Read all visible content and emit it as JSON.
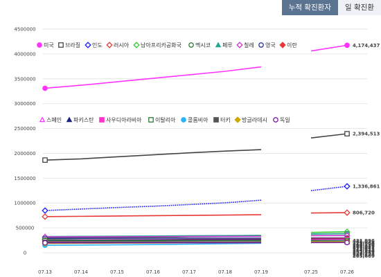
{
  "tabs": [
    {
      "label": "누적 확진환자",
      "active": true
    },
    {
      "label": "일 확진환",
      "active": false
    }
  ],
  "chart_data": {
    "type": "line",
    "categories": [
      "07.13",
      "07.14",
      "07.15",
      "07.16",
      "07.17",
      "07.18",
      "07.19",
      "07.25",
      "07.26"
    ],
    "ylim": [
      0,
      4500000
    ],
    "yticks": [
      0,
      500000,
      1000000,
      1500000,
      2000000,
      2500000,
      3000000,
      3500000,
      4000000,
      4500000
    ],
    "ytick_labels": [
      "0",
      "500000",
      "1000000",
      "1500000",
      "2000000",
      "2500000",
      "3000000",
      "3500000",
      "4000000",
      "4500000"
    ],
    "grid": true,
    "legend_groups": [
      [
        "미국",
        "브라질",
        "인도",
        "러시아",
        "남아프리카공화국",
        "멕시코",
        "페루",
        "칠레",
        "영국",
        "이란"
      ],
      [
        "스페인",
        "파키스탄",
        "사우디아라비아",
        "이탈리아",
        "콜롬비아",
        "터키",
        "방글라데시",
        "독일"
      ]
    ],
    "series": [
      {
        "name": "미국",
        "color": "#ff33ff",
        "marker": "circle-filled",
        "values": [
          3310000,
          3370000,
          3440000,
          3510000,
          3580000,
          3650000,
          3740000,
          4060000,
          4174437
        ],
        "end_label": "4,174,437"
      },
      {
        "name": "브라질",
        "color": "#444444",
        "marker": "square-open",
        "values": [
          1864681,
          1889000,
          1930000,
          1970000,
          2010000,
          2045000,
          2075000,
          2310000,
          2394513
        ],
        "end_label": "2,394,513"
      },
      {
        "name": "인도",
        "color": "#1a1aff",
        "marker": "diamond-open",
        "dotted": true,
        "values": [
          849000,
          880000,
          910000,
          936000,
          970000,
          1005000,
          1058000,
          1250000,
          1336861
        ],
        "end_label": "1,336,861"
      },
      {
        "name": "러시아",
        "color": "#e53935",
        "marker": "diamond-open",
        "values": [
          727000,
          733000,
          739000,
          746000,
          752000,
          759000,
          765000,
          800000,
          806720
        ],
        "end_label": "806,720"
      },
      {
        "name": "남아프리카공화국",
        "color": "#33cc33",
        "marker": "diamond-open",
        "values": [
          276242,
          287796,
          298292,
          311049,
          324221,
          337594,
          350879,
          408052,
          421996
        ],
        "end_label": "421,996"
      },
      {
        "name": "멕시코",
        "color": "#2e7d32",
        "marker": "circle-open",
        "values": [
          299750,
          304435,
          311486,
          317635,
          324041,
          331298,
          338913,
          378285,
          385036
        ],
        "end_label": "385,036"
      },
      {
        "name": "페루",
        "color": "#26a69a",
        "marker": "triangle-filled",
        "values": [
          326326,
          330123,
          333867,
          337724,
          341586,
          345537,
          349500,
          375961,
          379884
        ],
        "end_label": "379,884"
      },
      {
        "name": "칠레",
        "color": "#cc33cc",
        "marker": "diamond-open",
        "values": [
          317657,
          319493,
          321205,
          323698,
          326539,
          328846,
          330930,
          343592,
          345790
        ],
        "end_label": "345,790"
      },
      {
        "name": "영국",
        "color": "#283593",
        "marker": "circle-open",
        "values": [
          290133,
          291373,
          291911,
          292552,
          293239,
          294066,
          294792,
          298681,
          299426
        ],
        "end_label": "299,426"
      },
      {
        "name": "이란",
        "color": "#e53935",
        "marker": "diamond-filled",
        "values": [
          257303,
          259652,
          262173,
          264561,
          267061,
          269440,
          271606,
          286523,
          288839
        ],
        "end_label": "288,839"
      },
      {
        "name": "스페인",
        "color": "#ff33ff",
        "marker": "triangle-open",
        "values": [
          255953,
          256619,
          257494,
          258855,
          260255,
          260255,
          260255,
          272421,
          272421
        ],
        "end_label": "272,421"
      },
      {
        "name": "파키스탄",
        "color": "#1a237e",
        "marker": "triangle-filled",
        "values": [
          251625,
          253604,
          255769,
          257914,
          259999,
          261917,
          263496,
          271887,
          273113
        ],
        "end_label": "273,113"
      },
      {
        "name": "사우디아라비아",
        "color": "#ff33cc",
        "marker": "square-filled",
        "values": [
          232259,
          235111,
          237803,
          240474,
          243238,
          245851,
          248416,
          262772,
          264973
        ],
        "end_label": "264,973"
      },
      {
        "name": "이탈리아",
        "color": "#2e7d32",
        "marker": "square-open",
        "values": [
          243061,
          243230,
          243344,
          243506,
          243736,
          243967,
          244216,
          245338,
          245590
        ],
        "end_label": "245,590"
      },
      {
        "name": "콜롬비아",
        "color": "#29b6f6",
        "marker": "circle-filled",
        "values": [
          150445,
          154277,
          159898,
          165169,
          173206,
          182140,
          190700,
          226373,
          233541
        ],
        "end_label": "233,541"
      },
      {
        "name": "터키",
        "color": "#555555",
        "marker": "square-filled",
        "values": [
          212993,
          214001,
          214993,
          216873,
          216873,
          217799,
          218717,
          223315,
          224252
        ],
        "end_label": "224,252"
      },
      {
        "name": "방글라데시",
        "color": "#ccaa00",
        "marker": "diamond-filled",
        "values": [
          186894,
          190057,
          193590,
          196323,
          199357,
          202066,
          204525,
          218658,
          221178
        ],
        "end_label": "221,178"
      },
      {
        "name": "독일",
        "color": "#7b1fa2",
        "marker": "circle-open",
        "values": [
          199375,
          199726,
          200180,
          200456,
          201450,
          201574,
          202345,
          205269,
          205609
        ],
        "end_label": "205,609"
      }
    ]
  }
}
